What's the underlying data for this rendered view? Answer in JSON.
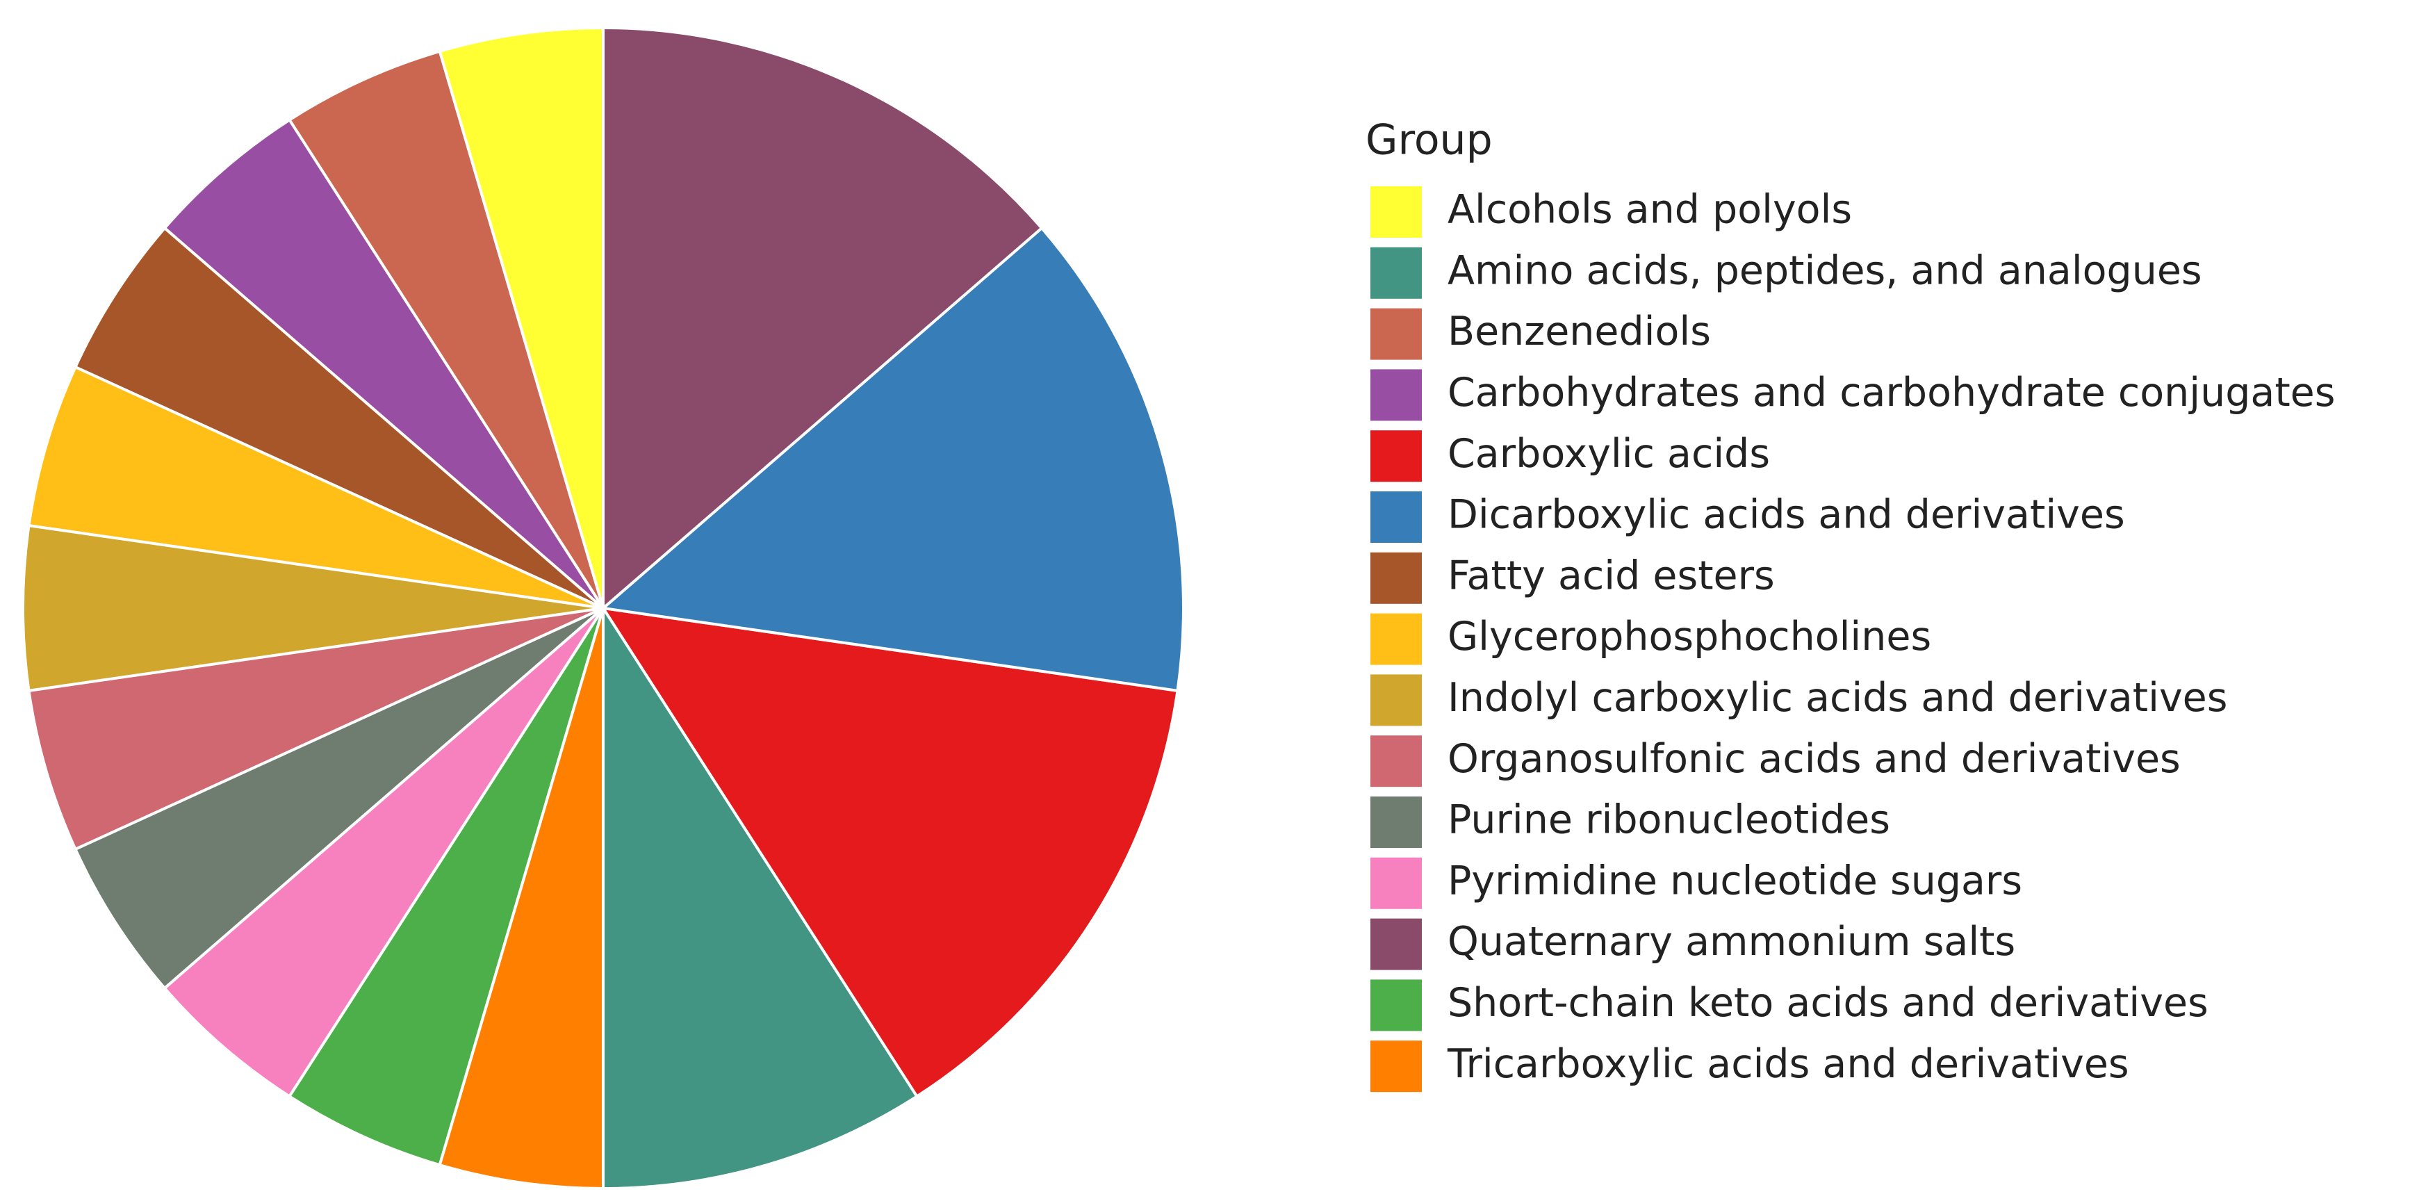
{
  "chart_data": {
    "type": "pie",
    "legend_title": "Group",
    "categories": [
      "Alcohols and polyols",
      "Benzenediols",
      "Carbohydrates and carbohydrate conjugates",
      "Fatty acid esters",
      "Glycerophosphocholines",
      "Indolyl carboxylic acids and derivatives",
      "Organosulfonic acids and derivatives",
      "Purine ribonucleotides",
      "Pyrimidine nucleotide sugars",
      "Short-chain keto acids and derivatives",
      "Tricarboxylic acids and derivatives",
      "Amino acids, peptides, and analogues",
      "Carboxylic acids",
      "Dicarboxylic acids and derivatives",
      "Quaternary ammonium salts"
    ],
    "values": [
      1,
      1,
      1,
      1,
      1,
      1,
      1,
      1,
      1,
      1,
      1,
      2,
      3,
      3,
      3
    ],
    "colors": [
      "#ffff33",
      "#cb6751",
      "#984ea3",
      "#a65628",
      "#ffbf17",
      "#d1a62c",
      "#cf6870",
      "#6f7d70",
      "#f781bf",
      "#4daf4a",
      "#ff7f00",
      "#419582",
      "#e41a1c",
      "#377eb8",
      "#8a4a6a"
    ],
    "legend": "right"
  }
}
